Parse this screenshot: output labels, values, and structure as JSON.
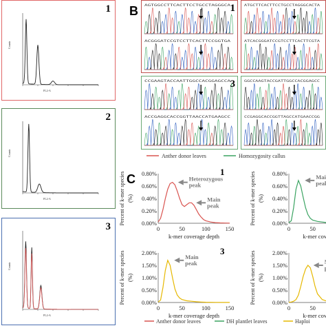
{
  "panel_a": {
    "flow_plots": [
      {
        "number": "1",
        "border_color": "#e06666",
        "ylabel": "Counts",
        "xlabel": "FL2-A"
      },
      {
        "number": "2",
        "border_color": "#5a8a5a",
        "ylabel": "Counts",
        "xlabel": "FL2-A"
      },
      {
        "number": "3",
        "border_color": "#4a6fb0",
        "ylabel": "Counts",
        "xlabel": "FL2-A"
      }
    ]
  },
  "panel_b": {
    "letter": "B",
    "boxes": [
      {
        "number": "1",
        "border_color": "#c0504d"
      },
      {
        "number": "",
        "border_color": "#c0504d"
      },
      {
        "number": "3",
        "border_color": "#6aa874"
      },
      {
        "number": "",
        "border_color": "#6aa874"
      }
    ],
    "sequences": [
      "AGTGGCCTTCACTTCCTGCCTAGGGCA",
      "CCGAAGTACCAATTGGCCACGGAGCCA",
      "ATGCTTCACTTCCTGCCTAGGGCACTA",
      "GGCCAAGTACCGATTGGCCACGGAGCC"
    ],
    "legend": [
      {
        "label": "Anther donor leaves",
        "color": "#d9534f"
      },
      {
        "label": "Homozygosity callus",
        "color": "#3aa361"
      }
    ]
  },
  "panel_c": {
    "letter": "C",
    "legend": [
      {
        "label": "Anther donor leaves",
        "color": "#d9534f"
      },
      {
        "label": "DH plantlet leaves",
        "color": "#3aa361"
      },
      {
        "label": "Haploi",
        "color": "#e6b800"
      }
    ]
  },
  "chart_data": [
    {
      "type": "line",
      "panel": "C1",
      "number": "1",
      "xlabel": "k-mer coverage depth",
      "ylabel": "Percent of k-mer species (%)",
      "xlim": [
        0,
        150
      ],
      "ylim": [
        0,
        0.8
      ],
      "xticks": [
        "0",
        "50",
        "100",
        "150"
      ],
      "yticks": [
        "0.00%",
        "0.20%",
        "0.40%",
        "0.60%",
        "0.80%"
      ],
      "series": [
        {
          "color": "#d9534f",
          "x": [
            0,
            5,
            10,
            15,
            20,
            25,
            30,
            35,
            40,
            45,
            50,
            55,
            60,
            65,
            70,
            75,
            80,
            85,
            90,
            95,
            100,
            110,
            120,
            130,
            140,
            150
          ],
          "y": [
            0.02,
            0.08,
            0.22,
            0.4,
            0.55,
            0.64,
            0.66,
            0.62,
            0.52,
            0.4,
            0.3,
            0.27,
            0.3,
            0.33,
            0.33,
            0.29,
            0.22,
            0.15,
            0.1,
            0.06,
            0.04,
            0.02,
            0.01,
            0.005,
            0.003,
            0.002
          ]
        }
      ],
      "annotations": [
        {
          "label_lines": [
            "Heterozygous",
            "peak"
          ],
          "x": 30,
          "y": 0.66
        },
        {
          "label_lines": [
            "Main",
            "peak"
          ],
          "x": 68,
          "y": 0.33
        }
      ]
    },
    {
      "type": "line",
      "panel": "C2",
      "number": "",
      "xlabel": "k-mer coverage de",
      "ylabel": "Percent of k-mer species (%)",
      "xlim": [
        0,
        150
      ],
      "ylim": [
        0,
        0.8
      ],
      "xticks": [
        "0",
        "50",
        "1"
      ],
      "yticks": [
        "0.00%",
        "0.20%",
        "0.40%",
        "0.60%",
        "0.80%"
      ],
      "series": [
        {
          "color": "#3aa361",
          "x": [
            0,
            5,
            10,
            15,
            20,
            25,
            30,
            35,
            40,
            45,
            50,
            60,
            70,
            80,
            90,
            100
          ],
          "y": [
            0.01,
            0.04,
            0.25,
            0.55,
            0.69,
            0.6,
            0.42,
            0.25,
            0.14,
            0.08,
            0.05,
            0.03,
            0.02,
            0.01,
            0.005,
            0.003
          ]
        }
      ],
      "annotations": [
        {
          "label_lines": [
            "Main",
            "peak"
          ],
          "x": 22,
          "y": 0.69
        }
      ]
    },
    {
      "type": "line",
      "panel": "C3",
      "number": "3",
      "xlabel": "k-mer coverage depth",
      "ylabel": "Percent of k-mer species (%)",
      "xlim": [
        0,
        150
      ],
      "ylim": [
        0,
        2.0
      ],
      "xticks": [
        "0",
        "50",
        "100",
        "150"
      ],
      "yticks": [
        "0.00%",
        "0.50%",
        "1.00%",
        "1.50%",
        "2.00%"
      ],
      "series": [
        {
          "color": "#e6b800",
          "x": [
            0,
            5,
            10,
            15,
            20,
            25,
            30,
            35,
            40,
            45,
            50,
            60,
            70,
            80,
            90,
            100,
            120,
            150
          ],
          "y": [
            0.02,
            0.1,
            0.6,
            1.3,
            1.7,
            1.5,
            1.0,
            0.55,
            0.3,
            0.18,
            0.12,
            0.07,
            0.05,
            0.03,
            0.02,
            0.01,
            0.005,
            0.002
          ]
        }
      ],
      "annotations": [
        {
          "label_lines": [
            "Main",
            "peak"
          ],
          "x": 22,
          "y": 1.7
        }
      ]
    },
    {
      "type": "line",
      "panel": "C4",
      "number": "",
      "xlabel": "k-mer coverage de",
      "ylabel": "Percent of k-mer species (%)",
      "xlim": [
        0,
        150
      ],
      "ylim": [
        0,
        2.0
      ],
      "xticks": [
        "0",
        "50",
        "1"
      ],
      "yticks": [
        "0.00%",
        "0.50%",
        "1.00%",
        "1.50%",
        "2.00%"
      ],
      "series": [
        {
          "color": "#e6b800",
          "x": [
            0,
            5,
            10,
            15,
            20,
            25,
            30,
            35,
            40,
            45,
            50,
            55,
            60,
            70,
            80,
            90,
            100
          ],
          "y": [
            0.01,
            0.02,
            0.05,
            0.12,
            0.3,
            0.65,
            1.05,
            1.35,
            1.5,
            1.4,
            1.05,
            0.65,
            0.35,
            0.12,
            0.05,
            0.02,
            0.01
          ]
        }
      ],
      "annotations": [
        {
          "label_lines": [
            "Main",
            "peak"
          ],
          "x": 40,
          "y": 1.5
        }
      ]
    }
  ]
}
